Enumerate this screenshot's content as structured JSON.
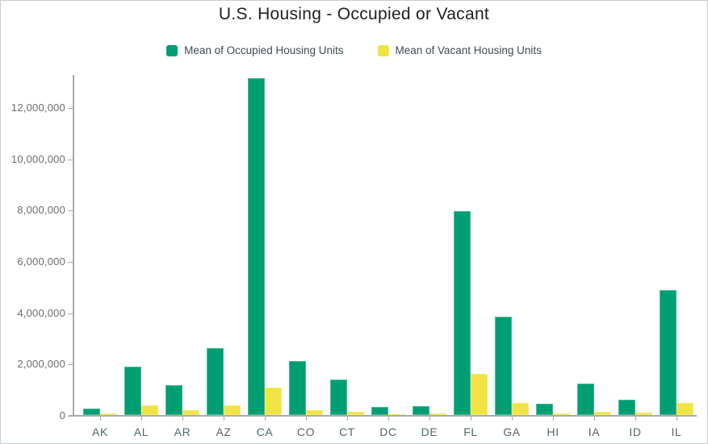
{
  "title": "U.S. Housing - Occupied or Vacant",
  "legend": {
    "items": [
      {
        "id": "occupied",
        "label": "Mean of Occupied Housing Units",
        "color": "#009E73"
      },
      {
        "id": "vacant",
        "label": "Mean of Vacant Housing Units",
        "color": "#F0E442"
      }
    ]
  },
  "colors": {
    "occupied": "#009E73",
    "vacant": "#F0E442",
    "axis": "#ababab",
    "tick_label": "#6e6e6e",
    "category_label": "#54656e"
  },
  "chart_data": {
    "type": "bar",
    "title": "U.S. Housing - Occupied or Vacant",
    "xlabel": "",
    "ylabel": "",
    "grid": false,
    "legend_position": "top",
    "ylim": [
      0,
      13200000
    ],
    "yticks": [
      0,
      2000000,
      4000000,
      6000000,
      8000000,
      10000000,
      12000000
    ],
    "ytick_labels": [
      "0",
      "2,000,000",
      "4,000,000",
      "6,000,000",
      "8,000,000",
      "10,000,000",
      "12,000,000"
    ],
    "categories": [
      "AK",
      "AL",
      "AR",
      "AZ",
      "CA",
      "CO",
      "CT",
      "DC",
      "DE",
      "FL",
      "GA",
      "HI",
      "IA",
      "ID",
      "IL"
    ],
    "series": [
      {
        "name": "Mean of Occupied Housing Units",
        "color": "#009E73",
        "values": [
          250000,
          1900000,
          1150000,
          2620000,
          13130000,
          2090000,
          1370000,
          300000,
          360000,
          7940000,
          3820000,
          430000,
          1240000,
          610000,
          4860000
        ]
      },
      {
        "name": "Mean of Vacant Housing Units",
        "color": "#F0E442",
        "values": [
          60000,
          380000,
          200000,
          380000,
          1080000,
          200000,
          140000,
          30000,
          60000,
          1600000,
          460000,
          50000,
          110000,
          80000,
          460000
        ]
      }
    ]
  }
}
